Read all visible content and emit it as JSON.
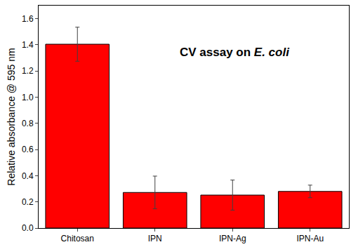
{
  "chart_data": {
    "type": "bar",
    "y_label": "Relative absorbance @ 595 nm",
    "annotation": [
      {
        "text": "CV assay on "
      },
      {
        "text": "E. coli",
        "style": "italic"
      }
    ],
    "categories": [
      "Chitosan",
      "IPN",
      "IPN-Ag",
      "IPN-Au"
    ],
    "values": [
      1.405,
      0.272,
      0.252,
      0.28
    ],
    "errors": [
      0.13,
      0.125,
      0.115,
      0.048
    ],
    "color": "#ff0000",
    "ylim": [
      0,
      1.7
    ],
    "yticks": [
      {
        "value": 0,
        "label": "0.0"
      },
      0.2,
      0.4,
      0.6,
      0.8,
      {
        "value": 1,
        "label": "1.0"
      },
      1.2,
      1.4,
      1.6
    ],
    "grid": false
  }
}
